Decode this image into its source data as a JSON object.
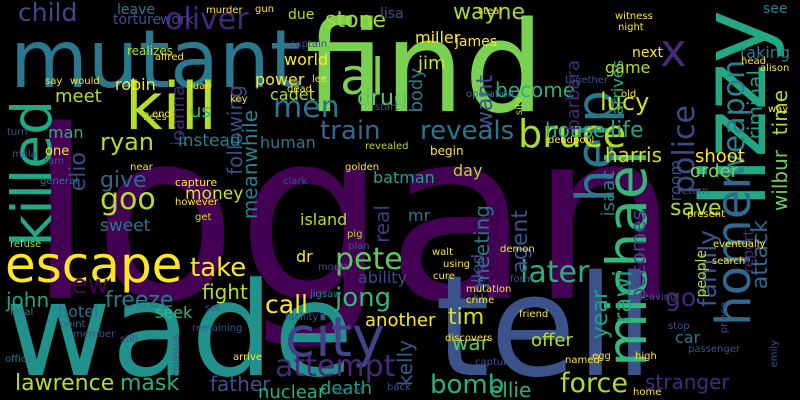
{
  "words": [
    {
      "text": "logan",
      "color": "#440154"
    },
    {
      "text": "find",
      "color": "#7ad151"
    },
    {
      "text": "tell",
      "color": "#3b528b"
    },
    {
      "text": "wade",
      "color": "#21918c"
    },
    {
      "text": "mutant",
      "color": "#2a788e"
    },
    {
      "text": "lizzy",
      "color": "#22a884"
    },
    {
      "text": "kill",
      "color": "#b5de2b"
    },
    {
      "text": "escape",
      "color": "#fde725"
    },
    {
      "text": "killed",
      "color": "#22a884"
    },
    {
      "text": "city",
      "color": "#414487"
    },
    {
      "text": "michael",
      "color": "#35b779"
    },
    {
      "text": "homer",
      "color": "#31688e"
    },
    {
      "text": "help",
      "color": "#2a788e"
    },
    {
      "text": "al",
      "color": "#7ad151"
    },
    {
      "text": "bruce",
      "color": "#addc30"
    },
    {
      "text": "x",
      "color": "#482878"
    },
    {
      "text": "men",
      "color": "#2a788e"
    },
    {
      "text": "train",
      "color": "#31688e"
    },
    {
      "text": "reveals",
      "color": "#2a788e"
    },
    {
      "text": "police",
      "color": "#3e4a89"
    },
    {
      "text": "weapon",
      "color": "#26828e"
    },
    {
      "text": "take",
      "color": "#fde725"
    },
    {
      "text": "pete",
      "color": "#5ec962"
    },
    {
      "text": "later",
      "color": "#2ab07f"
    },
    {
      "text": "family",
      "color": "#3b528b"
    },
    {
      "text": "attempt",
      "color": "#482878"
    },
    {
      "text": "jong",
      "color": "#35b779"
    },
    {
      "text": "force",
      "color": "#addc30"
    },
    {
      "text": "bomb",
      "color": "#2ab07f"
    },
    {
      "text": "new",
      "color": "#440154"
    },
    {
      "text": "goo",
      "color": "#b5de2b"
    },
    {
      "text": "oliver",
      "color": "#482878"
    },
    {
      "text": "lucy",
      "color": "#d2e21b"
    },
    {
      "text": "child",
      "color": "#3e4a89"
    },
    {
      "text": "stone",
      "color": "#a0da39"
    },
    {
      "text": "wayne",
      "color": "#a0da39"
    },
    {
      "text": "fight",
      "color": "#b5de2b"
    },
    {
      "text": "year",
      "color": "#1fa187"
    },
    {
      "text": "save",
      "color": "#addc30"
    },
    {
      "text": "attack",
      "color": "#31688e"
    },
    {
      "text": "criminal",
      "color": "#1fa187"
    },
    {
      "text": "wilbur",
      "color": "#6ece58"
    },
    {
      "text": "time",
      "color": "#b5de2b"
    },
    {
      "text": "lawrence",
      "color": "#b5de2b"
    },
    {
      "text": "mask",
      "color": "#2ab07f"
    },
    {
      "text": "father",
      "color": "#3b528b"
    },
    {
      "text": "freeze",
      "color": "#2a788e"
    },
    {
      "text": "john",
      "color": "#20a486"
    },
    {
      "text": "hotel",
      "color": "#2c728e"
    },
    {
      "text": "call",
      "color": "#fde725"
    },
    {
      "text": "kelly",
      "color": "#38588c"
    },
    {
      "text": "stranger",
      "color": "#482878"
    },
    {
      "text": "ellie",
      "color": "#2ab07f"
    },
    {
      "text": "becomes",
      "color": "#3e4a89"
    },
    {
      "text": "agent",
      "color": "#3b528b"
    },
    {
      "text": "meeting",
      "color": "#2a788e"
    },
    {
      "text": "real",
      "color": "#443983"
    },
    {
      "text": "rawi",
      "color": "#1fa187"
    },
    {
      "text": "tim",
      "color": "#d2e21b"
    },
    {
      "text": "war",
      "color": "#5ec962"
    },
    {
      "text": "go",
      "color": "#482878"
    },
    {
      "text": "death",
      "color": "#1fa187"
    },
    {
      "text": "nuclear",
      "color": "#2ab07f"
    },
    {
      "text": "another",
      "color": "#fde725"
    },
    {
      "text": "give",
      "color": "#31688e"
    },
    {
      "text": "ryan",
      "color": "#b5de2b"
    },
    {
      "text": "elio",
      "color": "#3e4a89"
    },
    {
      "text": "meanwhile",
      "color": "#26828e"
    },
    {
      "text": "house",
      "color": "#2ab07f"
    },
    {
      "text": "life",
      "color": "#20a486"
    },
    {
      "text": "harris",
      "color": "#d2e21b"
    },
    {
      "text": "shoot",
      "color": "#fde725"
    },
    {
      "text": "order",
      "color": "#7ad151"
    },
    {
      "text": "drug",
      "color": "#5ec962"
    },
    {
      "text": "want",
      "color": "#3b528b"
    },
    {
      "text": "become",
      "color": "#2ab07f"
    },
    {
      "text": "barbara",
      "color": "#482878"
    },
    {
      "text": "body",
      "color": "#2a788e"
    },
    {
      "text": "jim",
      "color": "#d2e21b"
    },
    {
      "text": "james",
      "color": "#fde725"
    },
    {
      "text": "miller",
      "color": "#fde725"
    },
    {
      "text": "robin",
      "color": "#fde725"
    },
    {
      "text": "meet",
      "color": "#b5de2b"
    },
    {
      "text": "world",
      "color": "#fde725"
    },
    {
      "text": "power",
      "color": "#fde725"
    },
    {
      "text": "cadet",
      "color": "#addc30"
    },
    {
      "text": "following",
      "color": "#3e4a89"
    },
    {
      "text": "joanna",
      "color": "#482878"
    },
    {
      "text": "us",
      "color": "#35b779"
    },
    {
      "text": "man",
      "color": "#2ab07f"
    },
    {
      "text": "one",
      "color": "#fde725"
    },
    {
      "text": "instead",
      "color": "#26828e"
    },
    {
      "text": "human",
      "color": "#2a788e"
    },
    {
      "text": "money",
      "color": "#d2e21b"
    },
    {
      "text": "sweet",
      "color": "#2a788e"
    },
    {
      "text": "island",
      "color": "#b5de2b"
    },
    {
      "text": "dr",
      "color": "#fde725"
    },
    {
      "text": "mr",
      "color": "#2a788e"
    },
    {
      "text": "seek",
      "color": "#35b779"
    },
    {
      "text": "ability",
      "color": "#3e4a89"
    },
    {
      "text": "day",
      "color": "#addc30"
    },
    {
      "text": "batman",
      "color": "#20a486"
    },
    {
      "text": "called",
      "color": "#3b528b"
    },
    {
      "text": "isaac",
      "color": "#26828e"
    },
    {
      "text": "room",
      "color": "#3e4a89"
    },
    {
      "text": "arrives",
      "color": "#2ab07f"
    },
    {
      "text": "game",
      "color": "#b5de2b"
    },
    {
      "text": "taking",
      "color": "#2a788e"
    },
    {
      "text": "see",
      "color": "#26828e"
    },
    {
      "text": "report",
      "color": "#482878"
    },
    {
      "text": "people",
      "color": "#b5de2b"
    },
    {
      "text": "leave",
      "color": "#2a788e"
    },
    {
      "text": "torture",
      "color": "#3b528b"
    },
    {
      "text": "work",
      "color": "#3e4a89"
    },
    {
      "text": "due",
      "color": "#b5de2b"
    },
    {
      "text": "lisa",
      "color": "#3b528b"
    },
    {
      "text": "offer",
      "color": "#b5de2b"
    },
    {
      "text": "car",
      "color": "#2a788e"
    },
    {
      "text": "get",
      "color": "#d2e21b"
    },
    {
      "text": "jigsaw",
      "color": "#26828e"
    },
    {
      "text": "egg",
      "color": "#fde725"
    },
    {
      "text": "pig",
      "color": "#b5de2b"
    },
    {
      "text": "plan",
      "color": "#3b528b"
    },
    {
      "text": "form",
      "color": "#3b528b"
    },
    {
      "text": "cure",
      "color": "#fde725"
    },
    {
      "text": "friend",
      "color": "#fde725"
    },
    {
      "text": "point",
      "color": "#31688e"
    },
    {
      "text": "officer",
      "color": "#2a788e"
    },
    {
      "text": "refuse",
      "color": "#b5de2b"
    },
    {
      "text": "local",
      "color": "#2a788e"
    },
    {
      "text": "realizes",
      "color": "#b5de2b"
    },
    {
      "text": "alfred",
      "color": "#fde725"
    },
    {
      "text": "flees",
      "color": "#b5de2b"
    },
    {
      "text": "juan",
      "color": "#fde725"
    },
    {
      "text": "key",
      "color": "#fde725"
    },
    {
      "text": "end",
      "color": "#fde725"
    },
    {
      "text": "near",
      "color": "#fde725"
    },
    {
      "text": "capture",
      "color": "#fde725"
    },
    {
      "text": "however",
      "color": "#fde725"
    },
    {
      "text": "clark",
      "color": "#3b528b"
    },
    {
      "text": "golden",
      "color": "#fde725"
    },
    {
      "text": "begin",
      "color": "#fde725"
    },
    {
      "text": "deadpool",
      "color": "#fde725"
    },
    {
      "text": "revealed",
      "color": "#b5de2b"
    },
    {
      "text": "start",
      "color": "#3b528b"
    },
    {
      "text": "together",
      "color": "#3b528b"
    },
    {
      "text": "site",
      "color": "#b5de2b"
    },
    {
      "text": "operation",
      "color": "#2a788e"
    },
    {
      "text": "steal",
      "color": "#fde725"
    },
    {
      "text": "witness",
      "color": "#fde725"
    },
    {
      "text": "night",
      "color": "#fde725"
    },
    {
      "text": "next",
      "color": "#fde725"
    },
    {
      "text": "old",
      "color": "#fde725"
    },
    {
      "text": "murder",
      "color": "#fde725"
    },
    {
      "text": "gun",
      "color": "#fde725"
    },
    {
      "text": "captain",
      "color": "#3e4a89"
    },
    {
      "text": "lee",
      "color": "#fde725"
    },
    {
      "text": "turn",
      "color": "#3b528b"
    },
    {
      "text": "mola",
      "color": "#3b528b"
    },
    {
      "text": "ram",
      "color": "#3b528b"
    },
    {
      "text": "general",
      "color": "#2a788e"
    },
    {
      "text": "walt",
      "color": "#fde725"
    },
    {
      "text": "using",
      "color": "#fde725"
    },
    {
      "text": "demon",
      "color": "#fde725"
    },
    {
      "text": "mutation",
      "color": "#fde725"
    },
    {
      "text": "crime",
      "color": "#fde725"
    },
    {
      "text": "discovers",
      "color": "#fde725"
    },
    {
      "text": "captured",
      "color": "#3b528b"
    },
    {
      "text": "named",
      "color": "#fde725"
    },
    {
      "text": "high",
      "color": "#fde725"
    },
    {
      "text": "home",
      "color": "#fde725"
    },
    {
      "text": "head",
      "color": "#fde725"
    },
    {
      "text": "alison",
      "color": "#fde725"
    },
    {
      "text": "way",
      "color": "#fde725"
    },
    {
      "text": "return",
      "color": "#3b528b"
    },
    {
      "text": "present",
      "color": "#fde725"
    },
    {
      "text": "eventually",
      "color": "#fde725"
    },
    {
      "text": "search",
      "color": "#fde725"
    },
    {
      "text": "leaving",
      "color": "#3b528b"
    },
    {
      "text": "stop",
      "color": "#3b528b"
    },
    {
      "text": "prince",
      "color": "#3b528b"
    },
    {
      "text": "passenger",
      "color": "#3b528b"
    },
    {
      "text": "emily",
      "color": "#3b528b"
    },
    {
      "text": "remaining",
      "color": "#3b528b"
    },
    {
      "text": "colossus",
      "color": "#3b528b"
    },
    {
      "text": "still",
      "color": "#3b528b"
    },
    {
      "text": "set",
      "color": "#3b528b"
    },
    {
      "text": "arrive",
      "color": "#fde725"
    },
    {
      "text": "facility",
      "color": "#3b528b"
    },
    {
      "text": "member",
      "color": "#3b528b"
    },
    {
      "text": "secret",
      "color": "#3b528b"
    },
    {
      "text": "back",
      "color": "#3b528b"
    },
    {
      "text": "say",
      "color": "#fde725"
    },
    {
      "text": "would",
      "color": "#fde725"
    },
    {
      "text": "dead",
      "color": "#fde725"
    },
    {
      "text": "mouth",
      "color": "#3b528b"
    },
    {
      "text": "ivy",
      "color": "#3b528b"
    }
  ]
}
